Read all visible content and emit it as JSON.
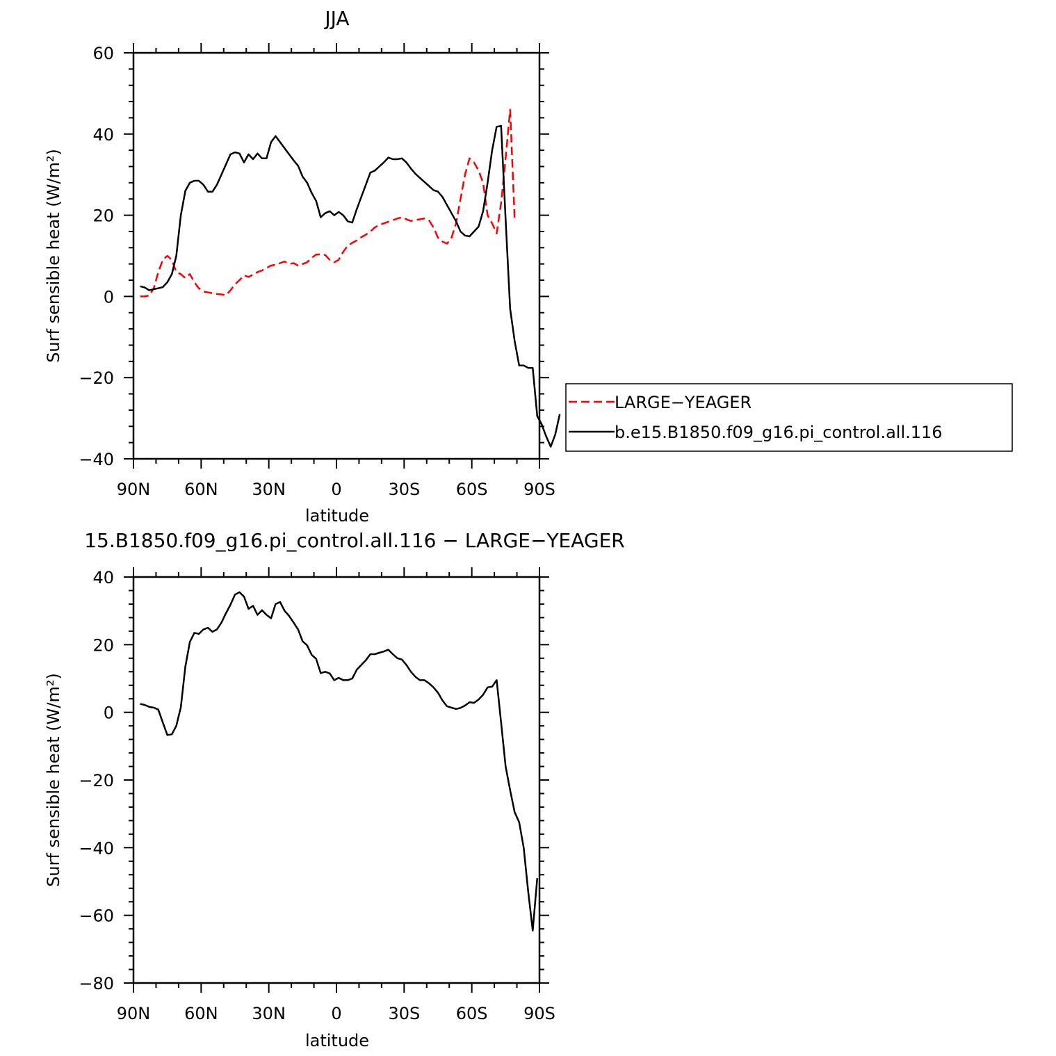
{
  "chart_data": [
    {
      "type": "line",
      "title": "JJA",
      "xlabel": "latitude",
      "ylabel": "Surf sensible heat (W/m²)",
      "xlim": [
        90,
        -90
      ],
      "ylim": [
        -40,
        60
      ],
      "xticks": [
        {
          "value": 90,
          "label": "90N"
        },
        {
          "value": 60,
          "label": "60N"
        },
        {
          "value": 30,
          "label": "30N"
        },
        {
          "value": 0,
          "label": "0"
        },
        {
          "value": -30,
          "label": "30S"
        },
        {
          "value": -60,
          "label": "60S"
        },
        {
          "value": -90,
          "label": "90S"
        }
      ],
      "yticks": [
        -40,
        -20,
        0,
        20,
        40,
        60
      ],
      "legend_position": "right",
      "series": [
        {
          "name": "LARGE−YEAGER",
          "color": "#ff0000",
          "dash": "dashed",
          "points": [
            [
              87,
              0
            ],
            [
              85,
              0
            ],
            [
              83,
              0.2
            ],
            [
              81,
              2
            ],
            [
              79,
              6
            ],
            [
              77,
              9
            ],
            [
              75,
              10
            ],
            [
              73,
              9
            ],
            [
              71,
              6
            ],
            [
              69,
              5.5
            ],
            [
              67,
              4.5
            ],
            [
              65,
              5.5
            ],
            [
              63,
              3.5
            ],
            [
              61,
              2
            ],
            [
              59,
              1.2
            ],
            [
              57,
              1
            ],
            [
              55,
              0.8
            ],
            [
              53,
              0.6
            ],
            [
              51,
              0.5
            ],
            [
              49,
              0.3
            ],
            [
              47,
              1.5
            ],
            [
              45,
              3
            ],
            [
              43,
              4
            ],
            [
              41,
              5.2
            ],
            [
              39,
              4.8
            ],
            [
              37,
              5.4
            ],
            [
              35,
              6
            ],
            [
              33,
              6.4
            ],
            [
              31,
              7
            ],
            [
              29,
              7.6
            ],
            [
              27,
              7.8
            ],
            [
              25,
              8.2
            ],
            [
              23,
              8.6
            ],
            [
              21,
              8
            ],
            [
              19,
              8.2
            ],
            [
              17,
              7.6
            ],
            [
              15,
              8
            ],
            [
              13,
              8.4
            ],
            [
              11,
              9.5
            ],
            [
              9,
              10.3
            ],
            [
              7,
              10.4
            ],
            [
              5,
              10.2
            ],
            [
              3,
              9
            ],
            [
              1,
              8.4
            ],
            [
              -1,
              9
            ],
            [
              -3,
              11
            ],
            [
              -5,
              12.5
            ],
            [
              -7,
              13.2
            ],
            [
              -9,
              13.8
            ],
            [
              -11,
              14.6
            ],
            [
              -13,
              15.2
            ],
            [
              -15,
              16
            ],
            [
              -17,
              17
            ],
            [
              -19,
              17.6
            ],
            [
              -21,
              18
            ],
            [
              -23,
              18.4
            ],
            [
              -25,
              18.8
            ],
            [
              -27,
              19.2
            ],
            [
              -29,
              19.5
            ],
            [
              -31,
              19
            ],
            [
              -33,
              18.6
            ],
            [
              -35,
              18.8
            ],
            [
              -37,
              19
            ],
            [
              -39,
              19.2
            ],
            [
              -41,
              18.8
            ],
            [
              -43,
              17
            ],
            [
              -45,
              14.5
            ],
            [
              -47,
              13.5
            ],
            [
              -49,
              13
            ],
            [
              -51,
              14.5
            ],
            [
              -53,
              18
            ],
            [
              -55,
              24
            ],
            [
              -57,
              30
            ],
            [
              -59,
              34
            ],
            [
              -61,
              33
            ],
            [
              -63,
              31
            ],
            [
              -65,
              28
            ],
            [
              -67,
              20
            ],
            [
              -69,
              18
            ],
            [
              -71,
              15.5
            ],
            [
              -73,
              23
            ],
            [
              -75,
              34
            ],
            [
              -77,
              46
            ],
            [
              -79,
              19
            ]
          ]
        },
        {
          "name": "b.e15.B1850.f09_g16.pi_control.all.116",
          "color": "#000000",
          "dash": "solid",
          "points": [
            [
              87,
              2.5
            ],
            [
              85,
              2.2
            ],
            [
              83,
              1.5
            ],
            [
              81,
              1.8
            ],
            [
              79,
              2
            ],
            [
              77,
              2.3
            ],
            [
              75,
              3.5
            ],
            [
              73,
              5.5
            ],
            [
              71,
              10
            ],
            [
              69,
              20
            ],
            [
              67,
              26
            ],
            [
              65,
              28
            ],
            [
              63,
              28.5
            ],
            [
              61,
              28.5
            ],
            [
              59,
              27.5
            ],
            [
              57,
              25.8
            ],
            [
              55,
              25.8
            ],
            [
              53,
              27.5
            ],
            [
              51,
              30
            ],
            [
              49,
              32.5
            ],
            [
              47,
              35
            ],
            [
              45,
              35.5
            ],
            [
              43,
              35.2
            ],
            [
              41,
              33
            ],
            [
              39,
              35
            ],
            [
              37,
              33.8
            ],
            [
              35,
              35.2
            ],
            [
              33,
              34
            ],
            [
              31,
              34
            ],
            [
              29,
              38
            ],
            [
              27,
              39.5
            ],
            [
              25,
              38
            ],
            [
              23,
              36.5
            ],
            [
              21,
              35
            ],
            [
              19,
              33.5
            ],
            [
              17,
              32.2
            ],
            [
              15,
              29.5
            ],
            [
              13,
              28
            ],
            [
              11,
              25.5
            ],
            [
              9,
              23.5
            ],
            [
              7,
              19.5
            ],
            [
              5,
              20.5
            ],
            [
              3,
              21
            ],
            [
              1,
              20
            ],
            [
              -1,
              20.8
            ],
            [
              -3,
              20
            ],
            [
              -5,
              18.5
            ],
            [
              -7,
              18.2
            ],
            [
              -9,
              21.5
            ],
            [
              -11,
              24.5
            ],
            [
              -13,
              27.5
            ],
            [
              -15,
              30.5
            ],
            [
              -17,
              31
            ],
            [
              -19,
              32
            ],
            [
              -21,
              33
            ],
            [
              -23,
              34.2
            ],
            [
              -25,
              33.8
            ],
            [
              -27,
              33.8
            ],
            [
              -29,
              34
            ],
            [
              -31,
              33
            ],
            [
              -33,
              31.5
            ],
            [
              -35,
              30.2
            ],
            [
              -37,
              29.2
            ],
            [
              -39,
              28.2
            ],
            [
              -41,
              27.2
            ],
            [
              -43,
              26.2
            ],
            [
              -45,
              25.8
            ],
            [
              -47,
              24.5
            ],
            [
              -49,
              22.5
            ],
            [
              -51,
              20.5
            ],
            [
              -53,
              18.5
            ],
            [
              -55,
              16
            ],
            [
              -57,
              15
            ],
            [
              -59,
              14.8
            ],
            [
              -61,
              16
            ],
            [
              -63,
              17.2
            ],
            [
              -65,
              21
            ],
            [
              -67,
              28
            ],
            [
              -69,
              36
            ],
            [
              -71,
              41.8
            ],
            [
              -73,
              42
            ],
            [
              -75,
              19
            ],
            [
              -77,
              -3
            ],
            [
              -79,
              -11
            ],
            [
              -81,
              -17
            ],
            [
              -83,
              -17
            ],
            [
              -85,
              -17.6
            ],
            [
              -87,
              -17.6
            ],
            [
              -89,
              -29.5
            ],
            [
              -91,
              -31.5
            ],
            [
              -93,
              -34.5
            ],
            [
              -95,
              -37
            ],
            [
              -97,
              -34
            ],
            [
              -99,
              -29
            ]
          ]
        }
      ]
    },
    {
      "type": "line",
      "title": "15.B1850.f09_g16.pi_control.all.116 − LARGE−YEAGER",
      "xlabel": "latitude",
      "ylabel": "Surf sensible heat (W/m²)",
      "xlim": [
        90,
        -90
      ],
      "ylim": [
        -80,
        40
      ],
      "xticks": [
        {
          "value": 90,
          "label": "90N"
        },
        {
          "value": 60,
          "label": "60N"
        },
        {
          "value": 30,
          "label": "30N"
        },
        {
          "value": 0,
          "label": "0"
        },
        {
          "value": -30,
          "label": "30S"
        },
        {
          "value": -60,
          "label": "60S"
        },
        {
          "value": -90,
          "label": "90S"
        }
      ],
      "yticks": [
        -80,
        -60,
        -40,
        -20,
        0,
        20,
        40
      ],
      "series": [
        {
          "color": "#000000",
          "dash": "solid",
          "points": [
            [
              87,
              2.5
            ],
            [
              85,
              2.2
            ],
            [
              83,
              1.6
            ],
            [
              81,
              1.4
            ],
            [
              79,
              0.8
            ],
            [
              77,
              -3
            ],
            [
              75,
              -6.7
            ],
            [
              73,
              -6.5
            ],
            [
              71,
              -4
            ],
            [
              69,
              1.5
            ],
            [
              67,
              13.5
            ],
            [
              65,
              20.8
            ],
            [
              63,
              23.5
            ],
            [
              61,
              23.2
            ],
            [
              59,
              24.5
            ],
            [
              57,
              25
            ],
            [
              55,
              23.8
            ],
            [
              53,
              24.5
            ],
            [
              51,
              26.5
            ],
            [
              49,
              29.3
            ],
            [
              47,
              31.8
            ],
            [
              45,
              34.8
            ],
            [
              43,
              35.5
            ],
            [
              41,
              34.2
            ],
            [
              39,
              30.6
            ],
            [
              37,
              31.5
            ],
            [
              35,
              28.8
            ],
            [
              33,
              30.2
            ],
            [
              31,
              28.8
            ],
            [
              29,
              27.8
            ],
            [
              27,
              32
            ],
            [
              25,
              32.6
            ],
            [
              23,
              30
            ],
            [
              21,
              28.5
            ],
            [
              19,
              26.5
            ],
            [
              17,
              24.5
            ],
            [
              15,
              21
            ],
            [
              13,
              19.8
            ],
            [
              11,
              17
            ],
            [
              9,
              15.8
            ],
            [
              7,
              11.6
            ],
            [
              5,
              12
            ],
            [
              3,
              11.5
            ],
            [
              1,
              9.5
            ],
            [
              -1,
              10.2
            ],
            [
              -3,
              9.5
            ],
            [
              -5,
              9.5
            ],
            [
              -7,
              10
            ],
            [
              -9,
              12.6
            ],
            [
              -11,
              14
            ],
            [
              -13,
              15.4
            ],
            [
              -15,
              17.2
            ],
            [
              -17,
              17.2
            ],
            [
              -19,
              17.6
            ],
            [
              -21,
              18
            ],
            [
              -23,
              18.5
            ],
            [
              -25,
              17.2
            ],
            [
              -27,
              16
            ],
            [
              -29,
              15.6
            ],
            [
              -31,
              14
            ],
            [
              -33,
              12
            ],
            [
              -35,
              10.5
            ],
            [
              -37,
              9.5
            ],
            [
              -39,
              9.5
            ],
            [
              -41,
              8.6
            ],
            [
              -43,
              7.4
            ],
            [
              -45,
              5.8
            ],
            [
              -47,
              3.5
            ],
            [
              -49,
              1.8
            ],
            [
              -51,
              1.4
            ],
            [
              -53,
              1
            ],
            [
              -55,
              1.3
            ],
            [
              -57,
              2
            ],
            [
              -59,
              3
            ],
            [
              -61,
              2.8
            ],
            [
              -63,
              3.8
            ],
            [
              -65,
              5.2
            ],
            [
              -67,
              7.4
            ],
            [
              -69,
              7.6
            ],
            [
              -71,
              9.5
            ],
            [
              -73,
              -3
            ],
            [
              -75,
              -16
            ],
            [
              -77,
              -23
            ],
            [
              -79,
              -29.5
            ],
            [
              -81,
              -32.5
            ],
            [
              -83,
              -40
            ],
            [
              -85,
              -53
            ],
            [
              -87,
              -64.5
            ],
            [
              -89,
              -49
            ]
          ]
        }
      ]
    }
  ]
}
